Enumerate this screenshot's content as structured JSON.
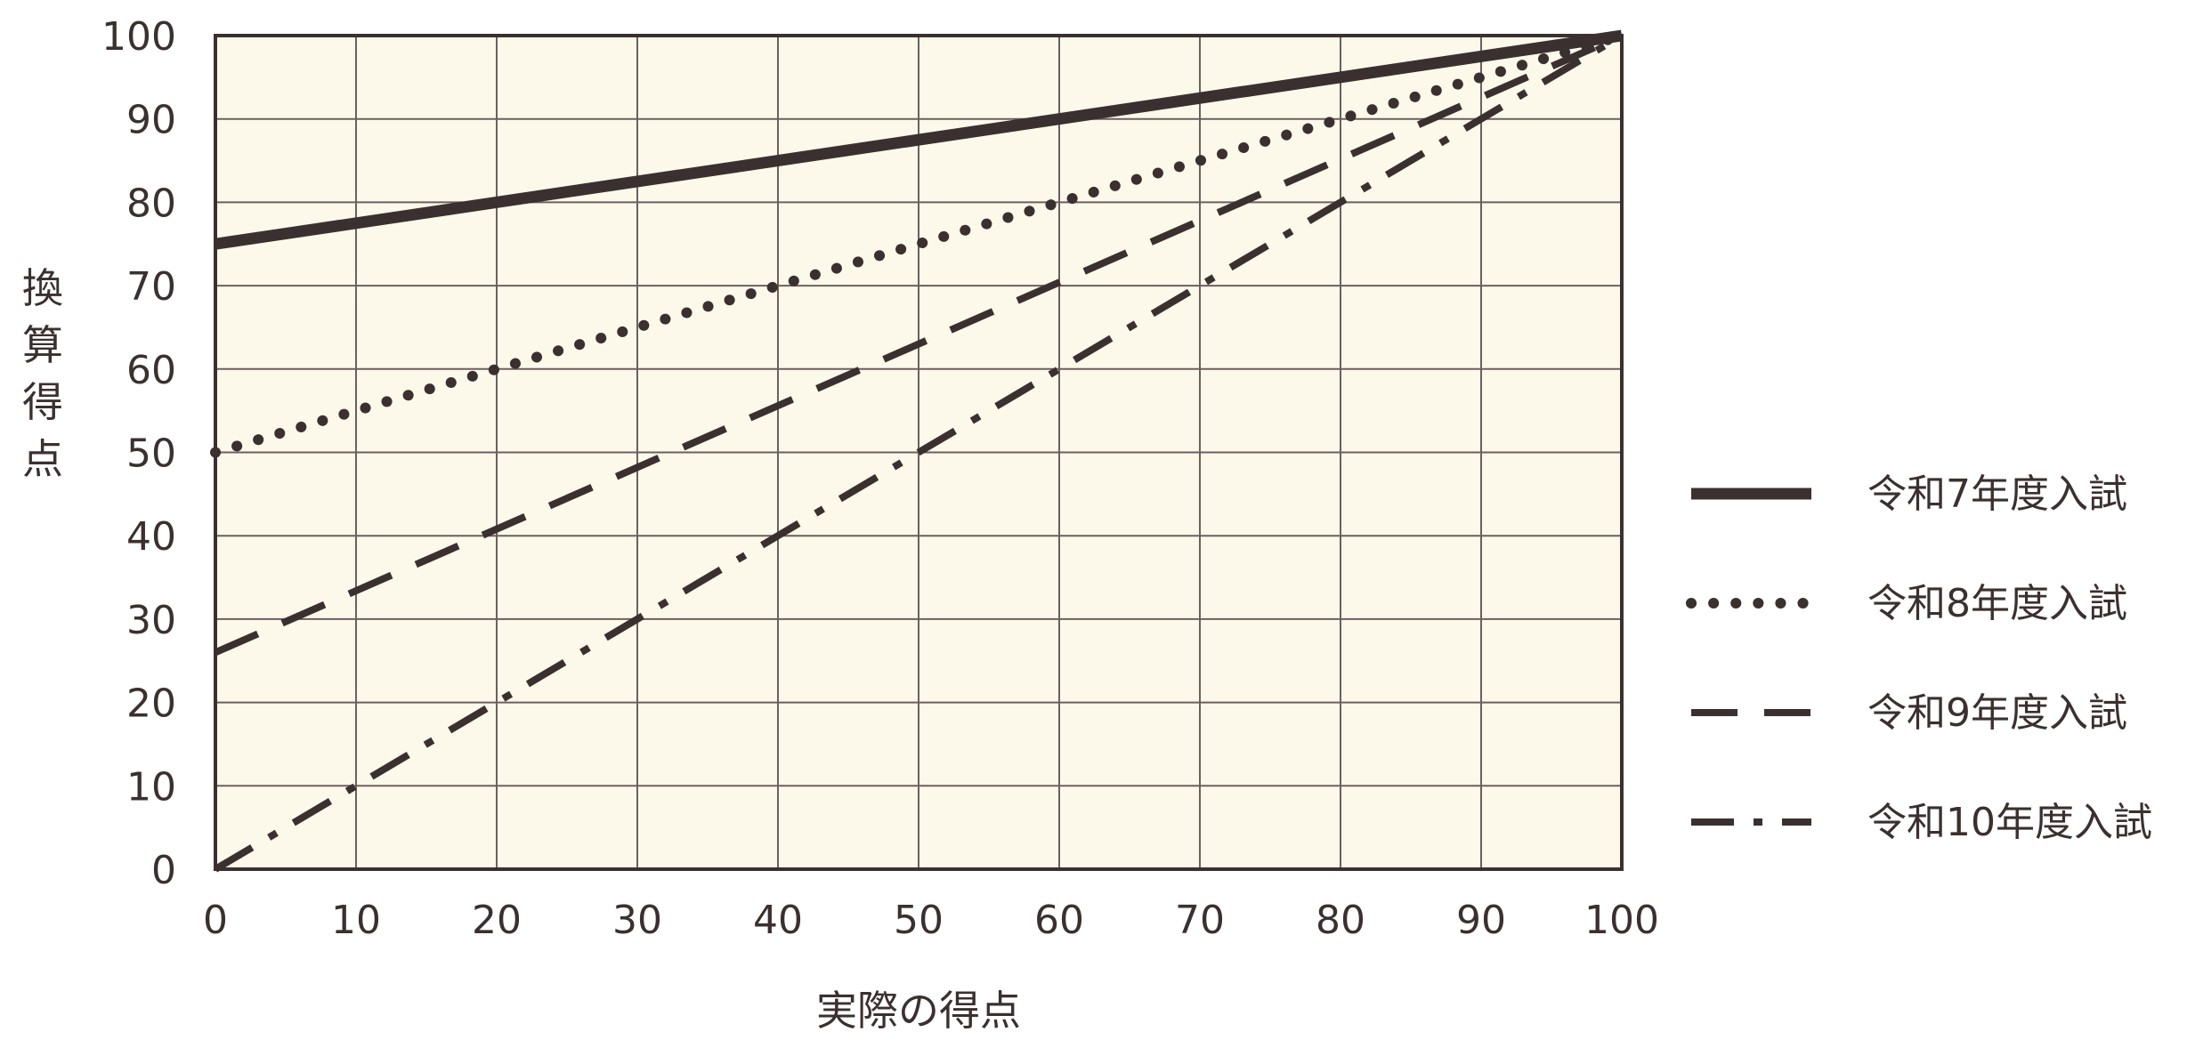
{
  "chart_data": {
    "type": "line",
    "title": "",
    "xlabel": "実際の得点",
    "ylabel": "換算得点",
    "xlim": [
      0,
      100
    ],
    "ylim": [
      0,
      100
    ],
    "x_ticks": [
      0,
      10,
      20,
      30,
      40,
      50,
      60,
      70,
      80,
      90,
      100
    ],
    "y_ticks": [
      0,
      10,
      20,
      30,
      40,
      50,
      60,
      70,
      80,
      90,
      100
    ],
    "grid": true,
    "plot_background": "#fdf9ea",
    "line_color": "#3b3030",
    "legend_position": "right",
    "series": [
      {
        "name": "令和7年度入試",
        "style": "solid",
        "points": [
          [
            0,
            75
          ],
          [
            100,
            100
          ]
        ]
      },
      {
        "name": "令和8年度入試",
        "style": "dotted",
        "points": [
          [
            0,
            50
          ],
          [
            100,
            100
          ]
        ]
      },
      {
        "name": "令和9年度入試",
        "style": "dashed",
        "points": [
          [
            0,
            26
          ],
          [
            100,
            100
          ]
        ]
      },
      {
        "name": "令和10年度入試",
        "style": "dashdot",
        "points": [
          [
            0,
            0
          ],
          [
            100,
            100
          ]
        ]
      }
    ]
  }
}
